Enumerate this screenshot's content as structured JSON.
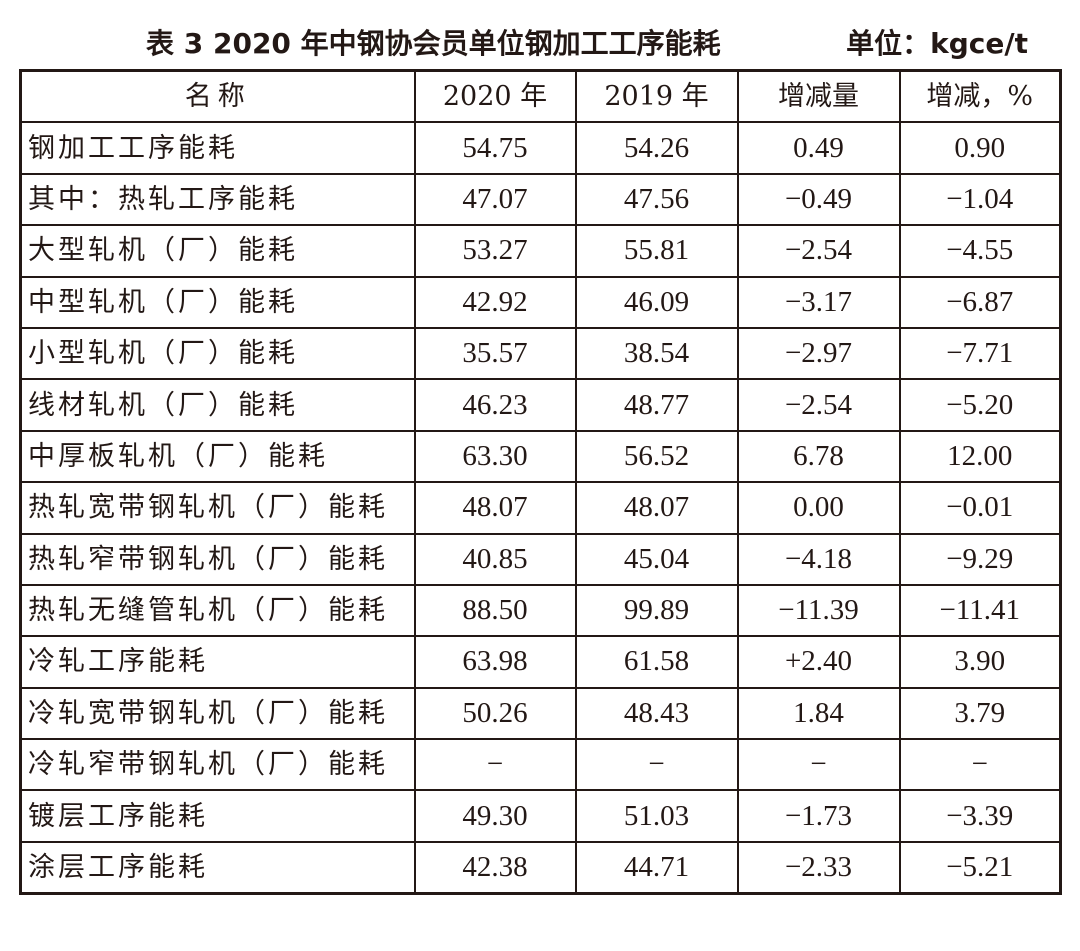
{
  "caption": {
    "title": "表 3   2020 年中钢协会员单位钢加工工序能耗",
    "unit": "单位：kgce/t"
  },
  "table": {
    "headers": [
      "名称",
      "2020 年",
      "2019 年",
      "增减量",
      "增减，%"
    ],
    "rows": [
      [
        "钢加工工序能耗",
        "54.75",
        "54.26",
        "0.49",
        "0.90"
      ],
      [
        "其中：热轧工序能耗",
        "47.07",
        "47.56",
        "−0.49",
        "−1.04"
      ],
      [
        "大型轧机（厂）能耗",
        "53.27",
        "55.81",
        "−2.54",
        "−4.55"
      ],
      [
        "中型轧机（厂）能耗",
        "42.92",
        "46.09",
        "−3.17",
        "−6.87"
      ],
      [
        "小型轧机（厂）能耗",
        "35.57",
        "38.54",
        "−2.97",
        "−7.71"
      ],
      [
        "线材轧机（厂）能耗",
        "46.23",
        "48.77",
        "−2.54",
        "−5.20"
      ],
      [
        "中厚板轧机（厂）能耗",
        "63.30",
        "56.52",
        "6.78",
        "12.00"
      ],
      [
        "热轧宽带钢轧机（厂）能耗",
        "48.07",
        "48.07",
        "0.00",
        "−0.01"
      ],
      [
        "热轧窄带钢轧机（厂）能耗",
        "40.85",
        "45.04",
        "−4.18",
        "−9.29"
      ],
      [
        "热轧无缝管轧机（厂）能耗",
        "88.50",
        "99.89",
        "−11.39",
        "−11.41"
      ],
      [
        "冷轧工序能耗",
        "63.98",
        "61.58",
        "+2.40",
        "3.90"
      ],
      [
        "冷轧宽带钢轧机（厂）能耗",
        "50.26",
        "48.43",
        "1.84",
        "3.79"
      ],
      [
        "冷轧窄带钢轧机（厂）能耗",
        "−",
        "−",
        "−",
        "−"
      ],
      [
        "镀层工序能耗",
        "49.30",
        "51.03",
        "−1.73",
        "−3.39"
      ],
      [
        "涂层工序能耗",
        "42.38",
        "44.71",
        "−2.33",
        "−5.21"
      ]
    ]
  }
}
